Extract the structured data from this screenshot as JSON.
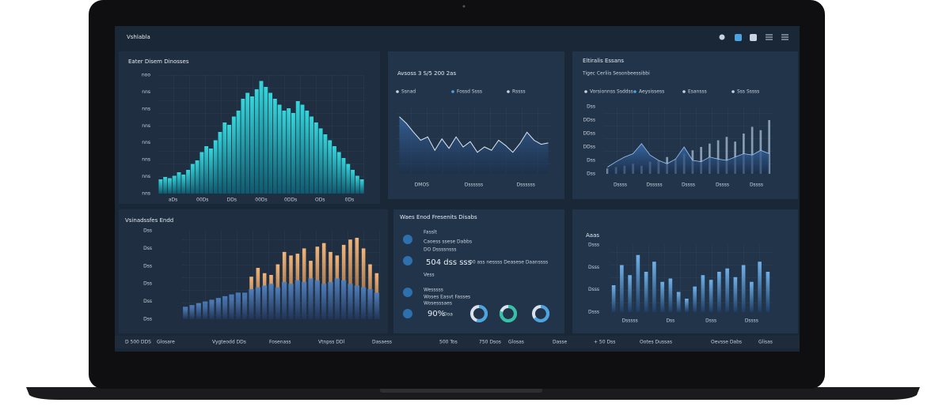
{
  "header": {
    "title": "Vshlabla"
  },
  "charts": [
    {
      "type": "histogram",
      "title": "Eater Disem Dinosses",
      "y_labels": [
        "noo",
        "nns",
        "nns",
        "nns",
        "nns",
        "nns",
        "nns",
        "nns"
      ],
      "x_labels": [
        "aDs",
        "00Ds",
        "DDs",
        "00Ds",
        "0DDs",
        "ODs",
        "0Ds"
      ],
      "ylim": [
        0,
        100
      ],
      "values": [
        12,
        14,
        13,
        15,
        18,
        16,
        20,
        25,
        28,
        35,
        40,
        38,
        45,
        52,
        60,
        58,
        65,
        70,
        80,
        85,
        82,
        88,
        95,
        90,
        85,
        80,
        75,
        70,
        72,
        68,
        78,
        75,
        70,
        65,
        60,
        55,
        50,
        45,
        40,
        35,
        30,
        25,
        20,
        15,
        12
      ]
    },
    {
      "type": "line",
      "title": "Avsoss 3 S/5 200 2as",
      "legend": [
        "Ssnad",
        "Fossd Ssss",
        "Rssss"
      ],
      "x_labels": [
        "DMOS",
        "Dssssss",
        "Dssssss"
      ],
      "ylim": [
        0,
        100
      ],
      "values": [
        85,
        75,
        62,
        50,
        55,
        35,
        52,
        38,
        55,
        40,
        48,
        32,
        40,
        35,
        50,
        42,
        32,
        45,
        62,
        50,
        44,
        46
      ]
    },
    {
      "type": "area-bars",
      "title": "Eltiralis Essans",
      "subtitle": "Tigec Cerliis Sesonbeessibbi",
      "legend": [
        "Vorsionnss Ssddss",
        "Aeysissess",
        "Esansss",
        "Sss Sssss"
      ],
      "y_labels": [
        "Dss",
        "DDss",
        "DDss",
        "DDss",
        "Dss",
        "Dss"
      ],
      "x_labels": [
        "Dssss",
        "Dsssss",
        "Dssss",
        "Dssss",
        "Dssss"
      ],
      "ylim": [
        0,
        100
      ],
      "values": [
        10,
        18,
        25,
        30,
        45,
        28,
        20,
        15,
        22,
        40,
        20,
        18,
        25,
        22,
        20,
        25,
        30,
        28,
        35,
        30
      ],
      "bars": [
        8,
        10,
        12,
        15,
        12,
        18,
        20,
        25,
        22,
        30,
        35,
        40,
        45,
        50,
        55,
        48,
        60,
        70,
        65,
        80
      ]
    },
    {
      "type": "dual-bars",
      "title": "Vsinadssfes Endd",
      "y_labels": [
        "Dss",
        "Dss",
        "Dss",
        "Dss",
        "Dss",
        "Dss"
      ],
      "ylim": [
        0,
        100
      ],
      "values": [
        12,
        14,
        18,
        16,
        20,
        22,
        18,
        24,
        22,
        26,
        48,
        58,
        52,
        50,
        62,
        76,
        72,
        74,
        80,
        66,
        82,
        86,
        76,
        72,
        84,
        90,
        92,
        80,
        62,
        52
      ],
      "values2": [
        14,
        16,
        18,
        20,
        22,
        24,
        26,
        28,
        30,
        30,
        34,
        36,
        38,
        40,
        36,
        42,
        40,
        44,
        42,
        46,
        44,
        40,
        42,
        46,
        44,
        40,
        38,
        36,
        34,
        30
      ]
    },
    {
      "type": "gauges",
      "title": "Waes Enod Fresenits Disabs",
      "lines": [
        "Fasslt",
        "Caoess ssese Dabbs",
        "DO Dssssnsss",
        "504 dss sss",
        "00 ass nessss Deasese Daanssss",
        "Vess",
        "Wesssss",
        "Woses Easvt Fasses",
        "Wosesssaes",
        "90%",
        "Doa"
      ],
      "values": [
        55,
        80,
        65
      ]
    },
    {
      "type": "bars",
      "title": "Aaas",
      "y_labels": [
        "Dsss",
        "Dsss",
        "Dsss",
        "Dsss"
      ],
      "x_labels": [
        "Dsssss",
        "Dss",
        "Dsss",
        "Dssss"
      ],
      "ylim": [
        0,
        100
      ],
      "values": [
        40,
        70,
        55,
        85,
        60,
        75,
        45,
        50,
        30,
        20,
        38,
        55,
        48,
        60,
        65,
        52,
        70,
        45,
        75,
        60
      ]
    }
  ],
  "status_bar": [
    "D 500 DDS",
    "Glosare",
    "Vygteodd DDs",
    "Fosenass",
    "Vtnpss DDl",
    "Dasaess",
    "500 Tos",
    "750 Dsos",
    "Glosas",
    "Dasse",
    "+ 50 Dss",
    "Ootes Dussas",
    "Oevsse Dabs",
    "Glisas"
  ]
}
